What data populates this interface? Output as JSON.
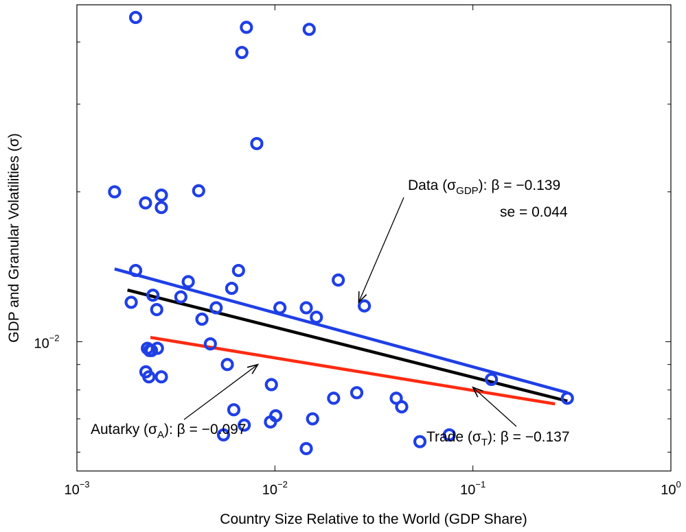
{
  "chart_data": {
    "type": "scatter",
    "title": "",
    "xlabel": "Country Size Relative to the World (GDP Share)",
    "ylabel": "GDP and Granular Volatilities (σ)",
    "xscale": "log",
    "yscale": "log",
    "xlim": [
      0.001,
      1
    ],
    "ylim": [
      0.0055,
      0.0475
    ],
    "x_ticks": [
      {
        "value": 0.001,
        "base": "10",
        "exp": "−3"
      },
      {
        "value": 0.01,
        "base": "10",
        "exp": "−2"
      },
      {
        "value": 0.1,
        "base": "10",
        "exp": "−1"
      },
      {
        "value": 1,
        "base": "10",
        "exp": "0"
      }
    ],
    "y_ticks": [
      {
        "value": 0.01,
        "base": "10",
        "exp": "−2"
      }
    ],
    "y_minor_ticks": [
      0.006,
      0.007,
      0.008,
      0.009,
      0.02,
      0.03,
      0.04
    ],
    "grid": false,
    "series": [
      {
        "kind": "points",
        "marker": "circle",
        "color": "#1f3fe6",
        "points": [
          [
            0.00198,
            0.0448
          ],
          [
            0.00155,
            0.02
          ],
          [
            0.00198,
            0.0139
          ],
          [
            0.00188,
            0.012
          ],
          [
            0.00222,
            0.019
          ],
          [
            0.00267,
            0.0197
          ],
          [
            0.00267,
            0.0186
          ],
          [
            0.00242,
            0.0124
          ],
          [
            0.00253,
            0.0116
          ],
          [
            0.00227,
            0.0097
          ],
          [
            0.00233,
            0.0096
          ],
          [
            0.00238,
            0.0096
          ],
          [
            0.00255,
            0.0097
          ],
          [
            0.00223,
            0.0087
          ],
          [
            0.00231,
            0.0085
          ],
          [
            0.00267,
            0.0085
          ],
          [
            0.00335,
            0.0123
          ],
          [
            0.00365,
            0.0132
          ],
          [
            0.00412,
            0.0201
          ],
          [
            0.00428,
            0.0111
          ],
          [
            0.00472,
            0.0099
          ],
          [
            0.00505,
            0.0117
          ],
          [
            0.00575,
            0.009
          ],
          [
            0.00605,
            0.0128
          ],
          [
            0.00655,
            0.0139
          ],
          [
            0.00681,
            0.0381
          ],
          [
            0.00718,
            0.0428
          ],
          [
            0.0081,
            0.025
          ],
          [
            0.0106,
            0.0117
          ],
          [
            0.0144,
            0.0117
          ],
          [
            0.0162,
            0.0112
          ],
          [
            0.0149,
            0.0424
          ],
          [
            0.0209,
            0.0133
          ],
          [
            0.0283,
            0.0118
          ],
          [
            0.0096,
            0.0082
          ],
          [
            0.0062,
            0.0073
          ],
          [
            0.0055,
            0.0065
          ],
          [
            0.007,
            0.0068
          ],
          [
            0.0095,
            0.0069
          ],
          [
            0.0101,
            0.0071
          ],
          [
            0.0144,
            0.0061
          ],
          [
            0.0155,
            0.007
          ],
          [
            0.0198,
            0.0077
          ],
          [
            0.0259,
            0.0079
          ],
          [
            0.041,
            0.0077
          ],
          [
            0.0437,
            0.0074
          ],
          [
            0.054,
            0.0063
          ],
          [
            0.076,
            0.0065
          ],
          [
            0.124,
            0.0084
          ],
          [
            0.3,
            0.0077
          ]
        ]
      },
      {
        "name": "Data",
        "kind": "line",
        "color": "#1f3fe6",
        "points": [
          [
            0.00155,
            0.014
          ],
          [
            0.3,
            0.0079
          ]
        ]
      },
      {
        "name": "Trade",
        "kind": "line",
        "color": "#000000",
        "points": [
          [
            0.0018,
            0.0127
          ],
          [
            0.3,
            0.0076
          ]
        ]
      },
      {
        "name": "Autarky",
        "kind": "line",
        "color": "#ff2a10",
        "points": [
          [
            0.00235,
            0.0102
          ],
          [
            0.26,
            0.0075
          ]
        ]
      }
    ],
    "annotations": [
      {
        "id": "data",
        "label": "Data (σ",
        "sub": "GDP",
        "rest": "): β = −0.139",
        "line2": "se = 0.044",
        "arrow_to": [
          0.0265,
          0.012
        ]
      },
      {
        "id": "autarky",
        "label": "Autarky (σ",
        "sub": "A",
        "rest": "): β = −0.097",
        "arrow_to": [
          0.0082,
          0.009
        ]
      },
      {
        "id": "trade",
        "label": "Trade (σ",
        "sub": "T",
        "rest": "): β = −0.137",
        "arrow_to": [
          0.1,
          0.0081
        ]
      }
    ]
  }
}
